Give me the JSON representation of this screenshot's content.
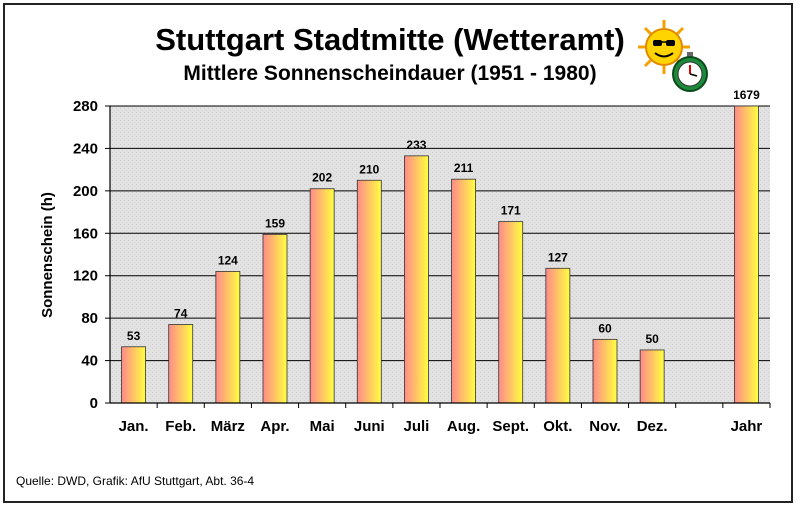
{
  "chart_data": {
    "type": "bar",
    "title": "Stuttgart Stadtmitte (Wetteramt)",
    "subtitle": "Mittlere Sonnenscheindauer (1951 - 1980)",
    "xlabel": "",
    "ylabel": "Sonnenschein (h)",
    "ylim": [
      0,
      280
    ],
    "yticks": [
      "0",
      "40",
      "80",
      "120",
      "160",
      "200",
      "240",
      "280"
    ],
    "grid": true,
    "categories": [
      "Jan.",
      "Feb.",
      "März",
      "Apr.",
      "Mai",
      "Juni",
      "Juli",
      "Aug.",
      "Sept.",
      "Okt.",
      "Nov.",
      "Dez.",
      "",
      "Jahr"
    ],
    "values": [
      53,
      74,
      124,
      159,
      202,
      210,
      233,
      211,
      171,
      127,
      60,
      50,
      null,
      1679
    ],
    "data_labels": [
      "53",
      "74",
      "124",
      "159",
      "202",
      "210",
      "233",
      "211",
      "171",
      "127",
      "60",
      "50",
      "",
      "1679"
    ]
  },
  "source": "Quelle: DWD, Grafik: AfU Stuttgart, Abt. 36-4",
  "colors": {
    "plot_background": "#e2e2e2",
    "bar_left": "#ff8a8a",
    "bar_right": "#ffff40",
    "gridline": "#000000"
  },
  "icons": [
    "sun-icon",
    "stopwatch-icon"
  ]
}
